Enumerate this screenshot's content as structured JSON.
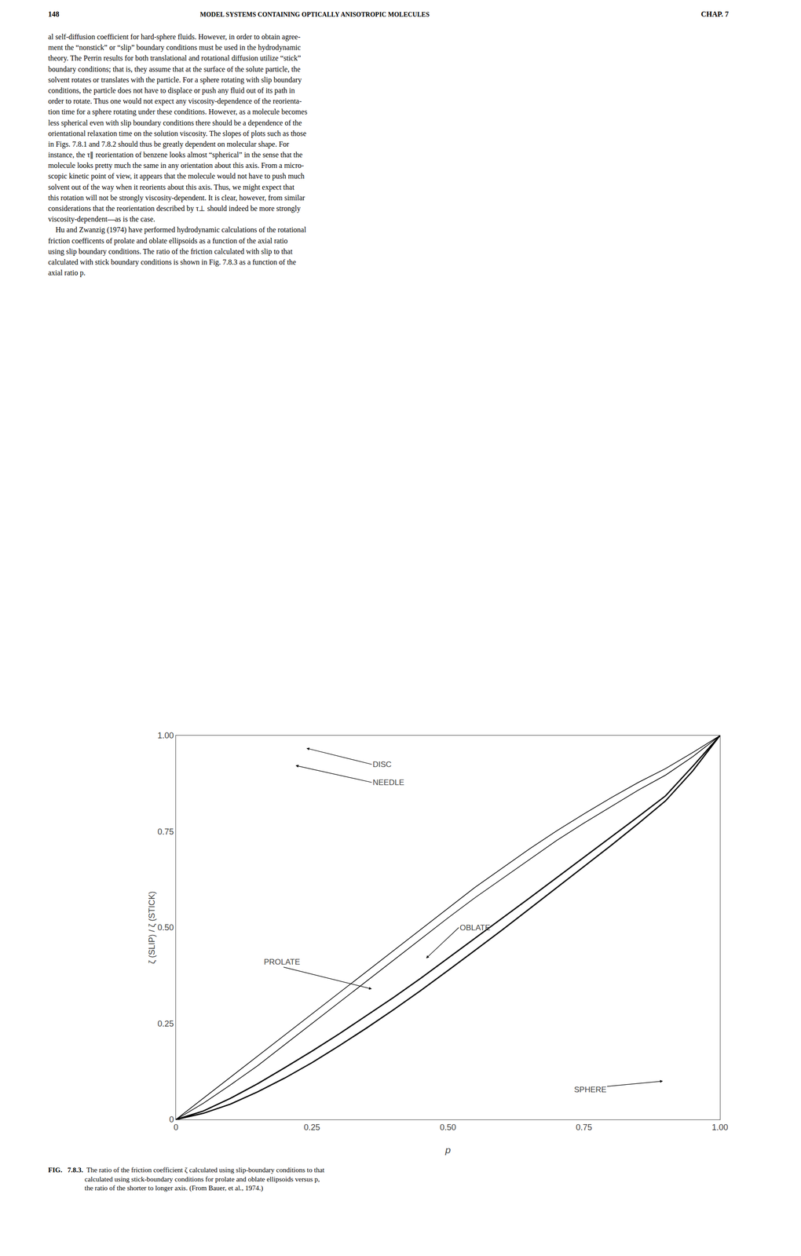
{
  "chart_data": {
    "type": "line",
    "xlabel": "p",
    "ylabel": "ζ (SLIP) / ζ (STICK)",
    "x": [
      0.0,
      0.05,
      0.1,
      0.15,
      0.2,
      0.25,
      0.3,
      0.35,
      0.4,
      0.45,
      0.5,
      0.55,
      0.6,
      0.65,
      0.7,
      0.75,
      0.8,
      0.85,
      0.9,
      0.95,
      1.0
    ],
    "series": [
      {
        "color": "#000000",
        "values": [
          0.0,
          0.055,
          0.11,
          0.165,
          0.22,
          0.275,
          0.33,
          0.385,
          0.44,
          0.495,
          0.55,
          0.605,
          0.655,
          0.705,
          0.752,
          0.796,
          0.838,
          0.878,
          0.914,
          0.956,
          1.0
        ]
      },
      {
        "color": "#000000",
        "values": [
          0.0,
          0.042,
          0.09,
          0.14,
          0.195,
          0.25,
          0.305,
          0.36,
          0.415,
          0.47,
          0.525,
          0.578,
          0.628,
          0.678,
          0.727,
          0.772,
          0.815,
          0.858,
          0.897,
          0.945,
          1.0
        ]
      },
      {
        "color": "#000000",
        "values": [
          0.0,
          0.022,
          0.055,
          0.093,
          0.135,
          0.178,
          0.223,
          0.27,
          0.318,
          0.368,
          0.42,
          0.472,
          0.524,
          0.577,
          0.63,
          0.683,
          0.735,
          0.789,
          0.843,
          0.92,
          1.0
        ]
      },
      {
        "color": "#000000",
        "values": [
          0.0,
          0.016,
          0.04,
          0.072,
          0.108,
          0.148,
          0.192,
          0.238,
          0.286,
          0.336,
          0.388,
          0.441,
          0.494,
          0.549,
          0.604,
          0.658,
          0.714,
          0.771,
          0.83,
          0.908,
          1.0
        ]
      }
    ],
    "xlim": [
      0,
      1.0
    ],
    "ylim": [
      0,
      1.0
    ],
    "xticks": [
      0,
      0.25,
      {
        "value": 0.5,
        "label": "0.50"
      },
      0.75,
      {
        "value": 1.0,
        "label": "1.00"
      }
    ],
    "yticks": [
      0,
      0.25,
      {
        "value": 0.5,
        "label": "0.50"
      },
      0.75,
      {
        "value": 1.0,
        "label": "1.00"
      }
    ],
    "grid": false,
    "annotations": [
      {
        "text": "DISC",
        "x": 0.24,
        "y": 0.967,
        "text_x": 0.36,
        "text_y": 0.925
      },
      {
        "text": "NEEDLE",
        "x": 0.22,
        "y": 0.922,
        "text_x": 0.36,
        "text_y": 0.878
      },
      {
        "text": "OBLATE",
        "x": 0.46,
        "y": 0.42,
        "text_x": 0.52,
        "text_y": 0.5
      },
      {
        "text": "PROLATE",
        "x": 0.36,
        "y": 0.34,
        "text_x": 0.16,
        "text_y": 0.41
      },
      {
        "text": "SPHERE",
        "x": 0.895,
        "y": 0.1,
        "text_x": 0.73,
        "text_y": 0.078
      }
    ]
  },
  "page": {
    "page_number": "148",
    "header": "MODEL SYSTEMS CONTAINING OPTICALLY ANISOTROPIC MOLECULES",
    "header_right": "CHAP. 7",
    "body_text": "al self-diffusion coefficient for hard-sphere fluids. However, in order to obtain agree-\nment the “nonstick” or “slip” boundary conditions must be used in the hydrodynamic\ntheory. The Perrin results for both translational and rotational diffusion utilize “stick”\nboundary conditions; that is, they assume that at the surface of the solute particle, the\nsolvent rotates or translates with the particle. For a sphere rotating with slip boundary\nconditions, the particle does not have to displace or push any fluid out of its path in\norder to rotate. Thus one would not expect any viscosity-dependence of the reorienta-\ntion time for a sphere rotating under these conditions. However, as a molecule becomes\nless spherical even with slip boundary conditions there should be a dependence of the\norientational relaxation time on the solution viscosity. The slopes of plots such as those\nin Figs. 7.8.1 and 7.8.2 should thus be greatly dependent on molecular shape. For\ninstance, the τ∥ reorientation of benzene looks almost “spherical” in the sense that the\nmolecule looks pretty much the same in any orientation about this axis. From a micro-\nscopic kinetic point of view, it appears that the molecule would not have to push much\nsolvent out of the way when it reorients about this axis. Thus, we might expect that\nthis rotation will not be strongly viscosity-dependent. It is clear, however, from similar\nconsiderations that the reorientation described by τ⊥ should indeed be more strongly\nviscosity-dependent—as is the case.\n    Hu and Zwanzig (1974) have performed hydrodynamic calculations of the rotational\nfriction coefficents of prolate and oblate ellipsoids as a function of the axial ratio\nusing slip boundary conditions. The ratio of the friction calculated with slip to that\ncalculated with stick boundary conditions is shown in Fig. 7.8.3 as a function of the\naxial ratio p.",
    "caption_bold": "FIG.   7.8.3.",
    "caption_text": "  The ratio of the friction coefficient ζ calculated using slip-boundary conditions to that\n                     calculated using stick-boundary conditions for prolate and oblate ellipsoids versus p,\n                     the ratio of the shorter to longer axis. (From Bauer, et al., 1974.)"
  }
}
